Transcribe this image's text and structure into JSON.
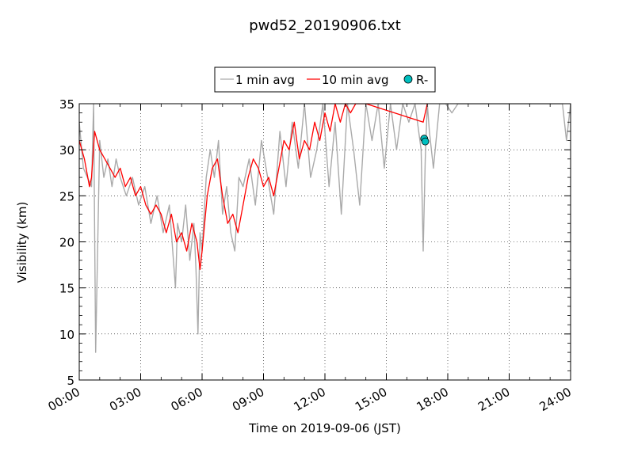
{
  "chart_data": {
    "type": "line",
    "title": "pwd52_20190906.txt",
    "xlabel": "Time on 2019-09-06 (JST)",
    "ylabel": "Visibility (km)",
    "x_unit": "hours",
    "xlim": [
      0,
      24
    ],
    "ylim": [
      5,
      35
    ],
    "x_ticks": [
      0,
      3,
      6,
      9,
      12,
      15,
      18,
      21,
      24
    ],
    "x_tick_labels": [
      "00:00",
      "03:00",
      "06:00",
      "09:00",
      "12:00",
      "15:00",
      "18:00",
      "21:00",
      "24:00"
    ],
    "y_ticks": [
      5,
      10,
      15,
      20,
      25,
      30,
      35
    ],
    "y_tick_labels": [
      "5",
      "10",
      "15",
      "20",
      "25",
      "30",
      "35"
    ],
    "grid": true,
    "legend_position": "top-center",
    "legend": [
      {
        "label": "1 min avg",
        "color": "#aaaaaa",
        "kind": "line"
      },
      {
        "label": "10 min avg",
        "color": "#ff0000",
        "kind": "line"
      },
      {
        "label": "R-",
        "color": "#00bfbf",
        "kind": "marker"
      }
    ],
    "series": [
      {
        "name": "10 min avg",
        "color": "#ff0000",
        "x": [
          0.0,
          0.25,
          0.5,
          0.6,
          0.75,
          1.0,
          1.25,
          1.5,
          1.75,
          2.0,
          2.25,
          2.5,
          2.75,
          3.0,
          3.25,
          3.5,
          3.75,
          4.0,
          4.25,
          4.5,
          4.75,
          5.0,
          5.25,
          5.5,
          5.75,
          5.9,
          6.0,
          6.25,
          6.5,
          6.75,
          7.0,
          7.25,
          7.5,
          7.75,
          8.0,
          8.25,
          8.5,
          8.75,
          9.0,
          9.25,
          9.5,
          9.75,
          10.0,
          10.25,
          10.5,
          10.75,
          11.0,
          11.25,
          11.5,
          11.75,
          12.0,
          12.25,
          12.5,
          12.75,
          13.0,
          13.25,
          13.5,
          13.75,
          14.0,
          16.8,
          17.0
        ],
        "y": [
          31,
          29,
          26,
          27,
          32,
          30,
          29,
          28,
          27,
          28,
          26,
          27,
          25,
          26,
          24,
          23,
          24,
          23,
          21,
          23,
          20,
          21,
          19,
          22,
          20,
          17,
          19,
          25,
          28,
          29,
          25,
          22,
          23,
          21,
          24,
          27,
          29,
          28,
          26,
          27,
          25,
          28,
          31,
          30,
          33,
          29,
          31,
          30,
          33,
          31,
          34,
          32,
          35,
          33,
          35,
          34,
          35,
          35,
          35,
          33,
          35
        ]
      },
      {
        "name": "1 min avg",
        "color": "#aaaaaa",
        "x": [
          0.0,
          0.2,
          0.4,
          0.6,
          0.7,
          0.8,
          1.0,
          1.2,
          1.4,
          1.6,
          1.8,
          2.0,
          2.3,
          2.6,
          2.9,
          3.2,
          3.5,
          3.8,
          4.1,
          4.4,
          4.7,
          4.8,
          5.0,
          5.2,
          5.4,
          5.6,
          5.7,
          5.8,
          5.9,
          6.0,
          6.2,
          6.4,
          6.6,
          6.8,
          7.0,
          7.2,
          7.4,
          7.6,
          7.8,
          8.0,
          8.3,
          8.6,
          8.9,
          9.2,
          9.5,
          9.8,
          10.1,
          10.4,
          10.7,
          11.0,
          11.3,
          11.6,
          11.9,
          12.2,
          12.5,
          12.8,
          13.1,
          13.4,
          13.7,
          14.0,
          14.3,
          14.6,
          14.9,
          15.2,
          15.5,
          15.8,
          16.1,
          16.4,
          16.7,
          16.8,
          16.9,
          17.0,
          17.1,
          17.3,
          17.6,
          17.9,
          18.2,
          18.5,
          18.8,
          19.1,
          19.4,
          19.7,
          20.0,
          20.3,
          20.6,
          20.9,
          21.2,
          21.5,
          21.8,
          22.1,
          22.4,
          22.7,
          23.0,
          23.3,
          23.6,
          23.8,
          24.0
        ],
        "y": [
          33,
          28,
          27,
          26,
          35,
          8,
          31,
          27,
          29,
          26,
          29,
          27,
          25,
          27,
          24,
          26,
          22,
          25,
          21,
          24,
          15,
          22,
          20,
          24,
          18,
          22,
          17,
          10,
          21,
          19,
          27,
          30,
          27,
          31,
          23,
          26,
          21,
          19,
          27,
          26,
          29,
          24,
          31,
          27,
          23,
          32,
          26,
          33,
          28,
          35,
          27,
          30,
          35,
          26,
          33,
          23,
          35,
          30,
          24,
          35,
          31,
          35,
          28,
          35,
          30,
          35,
          33,
          35,
          30,
          19,
          29,
          35,
          32,
          28,
          35,
          35,
          34,
          35,
          35,
          35,
          35,
          35,
          35,
          35,
          35,
          35,
          35,
          35,
          35,
          35,
          35,
          35,
          35,
          35,
          35,
          31,
          35
        ]
      },
      {
        "name": "R-",
        "type": "scatter",
        "color": "#00bfbf",
        "x": [
          16.85,
          16.9
        ],
        "y": [
          31.2,
          30.9
        ]
      }
    ]
  }
}
